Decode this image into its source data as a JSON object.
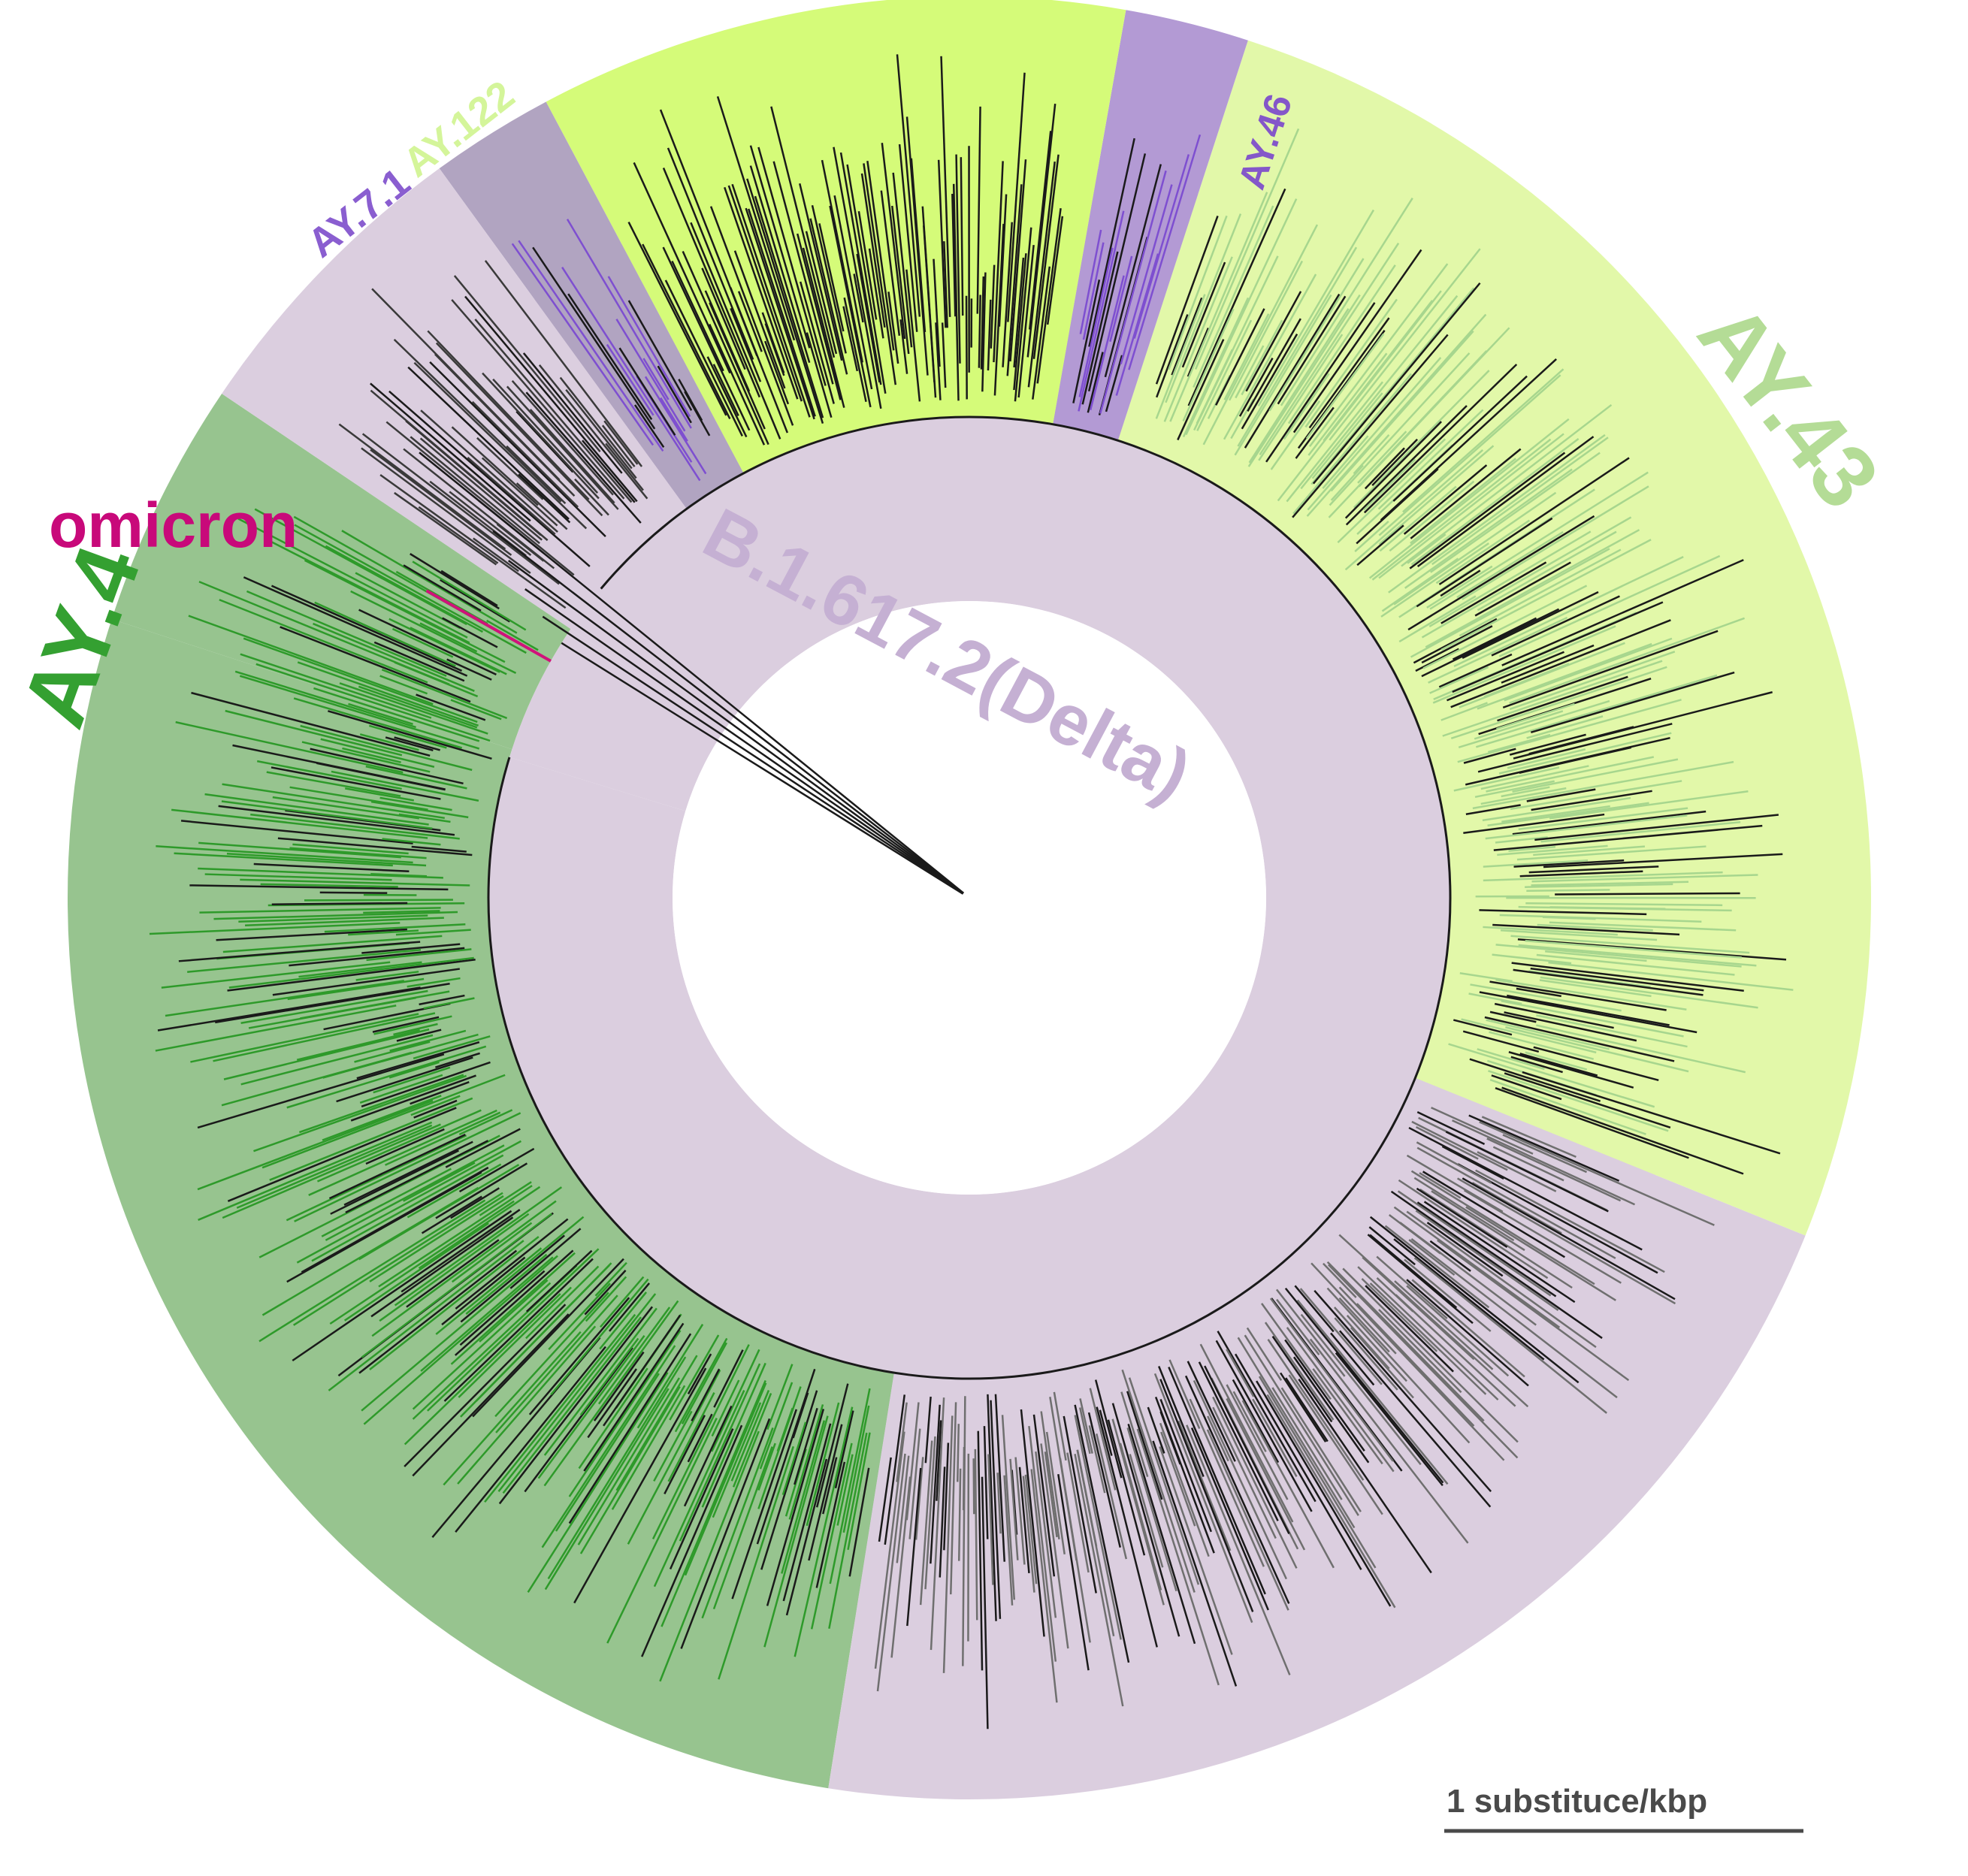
{
  "figure": {
    "center_label": "B.1.617.2(Delta)",
    "clades": [
      {
        "id": "ay4",
        "label": "AY.4",
        "fill": "#97c48f",
        "branch": "#2e9a2a",
        "label_color": "#34a031"
      },
      {
        "id": "ay43",
        "label": "AY.43",
        "fill": "#e2f8a9",
        "branch": "#a7d68e",
        "label_color": "#b4dc96"
      },
      {
        "id": "ay122",
        "label": "AY.122",
        "fill": "#d5fb79",
        "branch": "#1a1a1a",
        "label_color": "#d4f59a"
      },
      {
        "id": "ay46",
        "label": "AY.46",
        "fill": "#b39ad4",
        "branch": "#7e4fd0",
        "label_color": "#8457c9"
      },
      {
        "id": "ay71",
        "label": "AY.7.1",
        "fill": "#b1a4c1",
        "branch": "#7e4fd0",
        "label_color": "#8a5ed0"
      },
      {
        "id": "omicron",
        "label": "omicron",
        "fill": "#ffffff",
        "branch": "#d0127a",
        "label_color": "#c8097a"
      }
    ],
    "base_fill": "#dbcedf",
    "scale_bar": {
      "label": "1 substituce/kbp"
    }
  }
}
